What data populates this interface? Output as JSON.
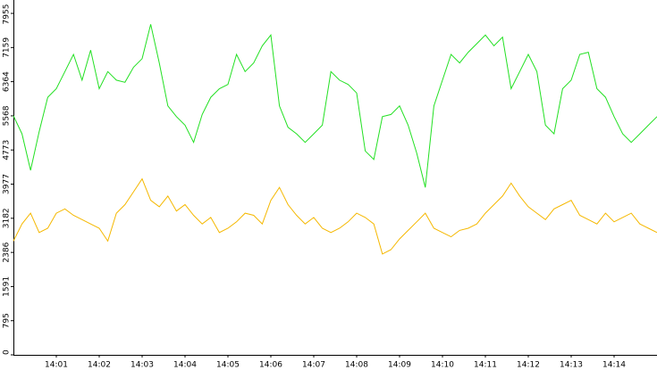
{
  "chart_data": {
    "type": "line",
    "x": [
      "14:00:00",
      "14:00:12",
      "14:00:24",
      "14:00:36",
      "14:00:48",
      "14:01:00",
      "14:01:12",
      "14:01:24",
      "14:01:36",
      "14:01:48",
      "14:02:00",
      "14:02:12",
      "14:02:24",
      "14:02:36",
      "14:02:48",
      "14:03:00",
      "14:03:12",
      "14:03:24",
      "14:03:36",
      "14:03:48",
      "14:04:00",
      "14:04:12",
      "14:04:24",
      "14:04:36",
      "14:04:48",
      "14:05:00",
      "14:05:12",
      "14:05:24",
      "14:05:36",
      "14:05:48",
      "14:06:00",
      "14:06:12",
      "14:06:24",
      "14:06:36",
      "14:06:48",
      "14:07:00",
      "14:07:12",
      "14:07:24",
      "14:07:36",
      "14:07:48",
      "14:08:00",
      "14:08:12",
      "14:08:24",
      "14:08:36",
      "14:08:48",
      "14:09:00",
      "14:09:12",
      "14:09:24",
      "14:09:36",
      "14:09:48",
      "14:10:00",
      "14:10:12",
      "14:10:24",
      "14:10:36",
      "14:10:48",
      "14:11:00",
      "14:11:12",
      "14:11:24",
      "14:11:36",
      "14:11:48",
      "14:12:00",
      "14:12:12",
      "14:12:24",
      "14:12:36",
      "14:12:48",
      "14:13:00",
      "14:13:12",
      "14:13:24",
      "14:13:36",
      "14:13:48",
      "14:14:00",
      "14:14:12",
      "14:14:24",
      "14:14:36",
      "14:14:48",
      "14:15:00"
    ],
    "series": [
      {
        "color": "#22e022",
        "values": [
          5570,
          5150,
          4300,
          5200,
          6000,
          6200,
          6600,
          7000,
          6400,
          7100,
          6200,
          6600,
          6400,
          6350,
          6700,
          6900,
          7700,
          6800,
          5800,
          5550,
          5350,
          4950,
          5600,
          6000,
          6200,
          6300,
          7000,
          6600,
          6800,
          7200,
          7450,
          5800,
          5300,
          5150,
          4950,
          5150,
          5350,
          6600,
          6400,
          6300,
          6100,
          4750,
          4550,
          5550,
          5600,
          5800,
          5350,
          4700,
          3900,
          5800,
          6400,
          7000,
          6800,
          7050,
          7250,
          7450,
          7200,
          7400,
          6200,
          6600,
          7000,
          6600,
          5350,
          5150,
          6200,
          6400,
          7000,
          7050,
          6200,
          6000,
          5550,
          5150,
          4950,
          5150,
          5350,
          5550
        ]
      },
      {
        "color": "#f5b800",
        "values": [
          2650,
          3050,
          3300,
          2850,
          2950,
          3300,
          3400,
          3250,
          3150,
          3050,
          2950,
          2650,
          3300,
          3500,
          3800,
          4100,
          3600,
          3450,
          3700,
          3350,
          3500,
          3250,
          3050,
          3200,
          2850,
          2950,
          3100,
          3300,
          3250,
          3050,
          3600,
          3900,
          3500,
          3250,
          3050,
          3200,
          2950,
          2850,
          2950,
          3100,
          3300,
          3200,
          3050,
          2350,
          2450,
          2700,
          2900,
          3100,
          3300,
          2950,
          2850,
          2750,
          2900,
          2950,
          3050,
          3300,
          3500,
          3700,
          4000,
          3700,
          3450,
          3300,
          3150,
          3400,
          3500,
          3600,
          3250,
          3150,
          3050,
          3300,
          3100,
          3200,
          3300,
          3050,
          2950,
          2850
        ]
      }
    ],
    "xlim": [
      "14:00:00",
      "14:15:00"
    ],
    "xticks": [
      {
        "value": "14:01:00",
        "label": "14:01"
      },
      {
        "value": "14:02:00",
        "label": "14:02"
      },
      {
        "value": "14:03:00",
        "label": "14:03"
      },
      {
        "value": "14:04:00",
        "label": "14:04"
      },
      {
        "value": "14:05:00",
        "label": "14:05"
      },
      {
        "value": "14:06:00",
        "label": "14:06"
      },
      {
        "value": "14:07:00",
        "label": "14:07"
      },
      {
        "value": "14:08:00",
        "label": "14:08"
      },
      {
        "value": "14:09:00",
        "label": "14:09"
      },
      {
        "value": "14:10:00",
        "label": "14:10"
      },
      {
        "value": "14:11:00",
        "label": "14:11"
      },
      {
        "value": "14:12:00",
        "label": "14:12"
      },
      {
        "value": "14:13:00",
        "label": "14:13"
      },
      {
        "value": "14:14:00",
        "label": "14:14"
      }
    ],
    "ylim": [
      0,
      8267
    ],
    "yticks": [
      0,
      795,
      1591,
      2386,
      3182,
      3977,
      4773,
      5568,
      6364,
      7159,
      7955
    ]
  }
}
